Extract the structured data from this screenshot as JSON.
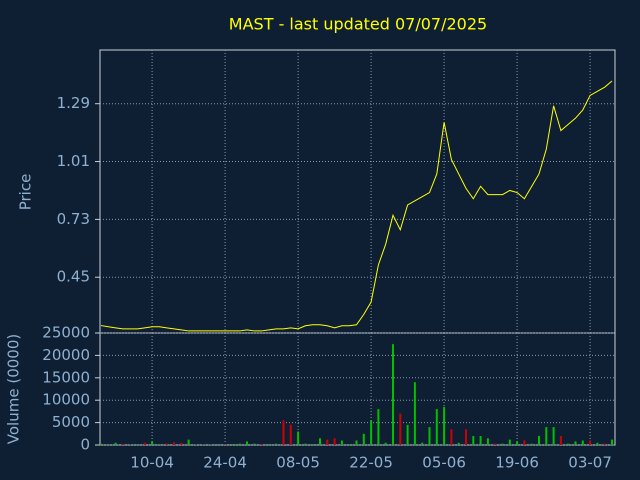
{
  "chart_data": [
    {
      "type": "line",
      "title": "MAST - last updated 07/07/2025",
      "y_label": "Price",
      "color": "#ffff00",
      "categories": [
        null,
        null,
        null,
        null,
        null,
        null,
        null,
        "10-04",
        null,
        null,
        null,
        null,
        null,
        null,
        null,
        null,
        null,
        "24-04",
        null,
        null,
        null,
        null,
        null,
        null,
        null,
        null,
        null,
        "08-05",
        null,
        null,
        null,
        null,
        null,
        null,
        null,
        null,
        null,
        "22-05",
        null,
        null,
        null,
        null,
        null,
        null,
        null,
        null,
        null,
        "05-06",
        null,
        null,
        null,
        null,
        null,
        null,
        null,
        null,
        null,
        "19-06",
        null,
        null,
        null,
        null,
        null,
        null,
        null,
        null,
        null,
        "03-07",
        null,
        null,
        null
      ],
      "values": [
        0.216,
        0.21,
        0.205,
        0.2,
        0.2,
        0.2,
        0.205,
        0.21,
        0.21,
        0.205,
        0.2,
        0.195,
        0.19,
        0.19,
        0.19,
        0.19,
        0.19,
        0.19,
        0.19,
        0.19,
        0.195,
        0.19,
        0.19,
        0.195,
        0.2,
        0.2,
        0.205,
        0.2,
        0.215,
        0.22,
        0.22,
        0.215,
        0.205,
        0.215,
        0.215,
        0.22,
        0.27,
        0.33,
        0.51,
        0.61,
        0.75,
        0.68,
        0.8,
        0.82,
        0.84,
        0.86,
        0.95,
        1.2,
        1.02,
        0.95,
        0.88,
        0.83,
        0.89,
        0.85,
        0.85,
        0.85,
        0.87,
        0.86,
        0.83,
        0.89,
        0.95,
        1.07,
        1.28,
        1.16,
        1.19,
        1.22,
        1.26,
        1.33,
        1.35,
        1.37,
        1.4
      ],
      "ylim": [
        0.18,
        1.55
      ],
      "yticks": [
        0.45,
        0.73,
        1.01,
        1.29
      ],
      "grid": true
    },
    {
      "type": "bar",
      "y_label": "Volume (0000)",
      "values": [
        300,
        200,
        500,
        200,
        100,
        200,
        500,
        800,
        200,
        300,
        600,
        500,
        1200,
        100,
        100,
        100,
        200,
        100,
        200,
        300,
        800,
        300,
        200,
        200,
        300,
        5500,
        4500,
        3000,
        300,
        200,
        1500,
        1200,
        1500,
        1000,
        200,
        1000,
        2500,
        5500,
        8000,
        500,
        22500,
        7000,
        4500,
        14000,
        500,
        4000,
        8000,
        8500,
        3500,
        500,
        3500,
        2000,
        2000,
        1500,
        300,
        300,
        1200,
        800,
        1000,
        300,
        2000,
        4000,
        4000,
        2000,
        300,
        800,
        1000,
        1000,
        500,
        300,
        1200
      ],
      "colors": [
        "#00c000",
        "#00c000",
        "#00c000",
        "#d00000",
        "#00c000",
        "#00c000",
        "#d00000",
        "#00c000",
        "#00c000",
        "#d00000",
        "#d00000",
        "#d00000",
        "#00c000",
        "#00c000",
        "#00c000",
        "#00c000",
        "#00c000",
        "#d00000",
        "#00c000",
        "#00c000",
        "#00c000",
        "#00c000",
        "#d00000",
        "#00c000",
        "#00c000",
        "#d00000",
        "#d00000",
        "#00c000",
        "#00c000",
        "#00c000",
        "#00c000",
        "#d00000",
        "#d00000",
        "#00c000",
        "#00c000",
        "#00c000",
        "#00c000",
        "#00c000",
        "#00c000",
        "#00c000",
        "#00c000",
        "#d00000",
        "#00c000",
        "#00c000",
        "#00c000",
        "#00c000",
        "#00c000",
        "#00c000",
        "#d00000",
        "#00c000",
        "#d00000",
        "#00c000",
        "#00c000",
        "#00c000",
        "#d00000",
        "#00c000",
        "#00c000",
        "#00c000",
        "#d00000",
        "#00c000",
        "#00c000",
        "#00c000",
        "#00c000",
        "#d00000",
        "#00c000",
        "#00c000",
        "#00c000",
        "#d00000",
        "#00c000",
        "#d00000",
        "#00c000"
      ],
      "ylim": [
        0,
        25000
      ],
      "yticks": [
        0,
        5000,
        10000,
        15000,
        20000,
        25000
      ],
      "grid": true
    }
  ]
}
